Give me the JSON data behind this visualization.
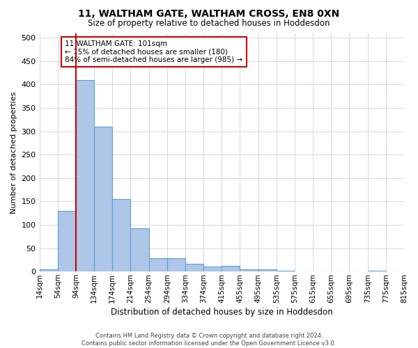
{
  "title1": "11, WALTHAM GATE, WALTHAM CROSS, EN8 0XN",
  "title2": "Size of property relative to detached houses in Hoddesdon",
  "xlabel": "Distribution of detached houses by size in Hoddesdon",
  "ylabel": "Number of detached properties",
  "bar_values": [
    5,
    130,
    410,
    310,
    155,
    92,
    28,
    28,
    17,
    10,
    12,
    5,
    5,
    1,
    0,
    0,
    0,
    0,
    1,
    0
  ],
  "bar_labels": [
    "14sqm",
    "54sqm",
    "94sqm",
    "134sqm",
    "174sqm",
    "214sqm",
    "254sqm",
    "294sqm",
    "334sqm",
    "374sqm",
    "415sqm",
    "455sqm",
    "495sqm",
    "535sqm",
    "575sqm",
    "615sqm",
    "655sqm",
    "695sqm",
    "735sqm",
    "775sqm",
    "815sqm"
  ],
  "bar_color": "#aec6e8",
  "bar_edge_color": "#5a9fd4",
  "vline_x": 2,
  "vline_color": "#cc0000",
  "annotation_text": "11 WALTHAM GATE: 101sqm\n← 15% of detached houses are smaller (180)\n84% of semi-detached houses are larger (985) →",
  "annotation_box_color": "#ffffff",
  "annotation_box_edge": "#cc0000",
  "ylim": [
    0,
    510
  ],
  "yticks": [
    0,
    50,
    100,
    150,
    200,
    250,
    300,
    350,
    400,
    450,
    500
  ],
  "footer1": "Contains HM Land Registry data © Crown copyright and database right 2024.",
  "footer2": "Contains public sector information licensed under the Open Government Licence v3.0.",
  "background_color": "#ffffff",
  "grid_color": "#d0d8e8"
}
